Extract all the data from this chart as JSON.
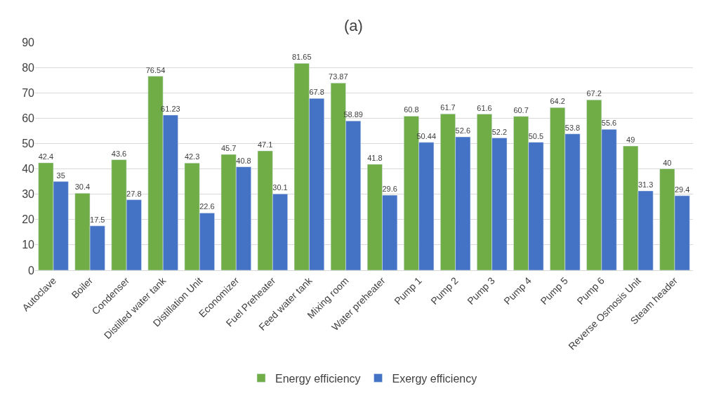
{
  "chart_data": {
    "type": "bar",
    "title": "(a)",
    "categories": [
      "Autoclave",
      "Boiler",
      "Condenser",
      "Distilled water tank",
      "Distillation Unit",
      "Economizer",
      "Fuel Preheater",
      "Feed water tank",
      "Mixing room",
      "Water preheater",
      "Pump 1",
      "Pump 2",
      "Pump 3",
      "Pump 4",
      "Pump 5",
      "Pump 6",
      "Reverse Osmosis Unit",
      "Steam header"
    ],
    "series": [
      {
        "name": "Energy efficiency",
        "color": "#70ad47",
        "values": [
          42.4,
          30.4,
          43.6,
          76.54,
          42.3,
          45.7,
          47.1,
          81.65,
          73.87,
          41.8,
          60.8,
          61.7,
          61.6,
          60.7,
          64.2,
          67.2,
          49,
          40
        ]
      },
      {
        "name": "Exergy efficiency",
        "color": "#4472c4",
        "values": [
          35,
          17.5,
          27.8,
          61.23,
          22.6,
          40.8,
          30.1,
          67.8,
          58.89,
          29.6,
          50.44,
          52.6,
          52.2,
          50.5,
          53.8,
          55.6,
          31.3,
          29.4
        ]
      }
    ],
    "ylim": [
      0,
      90
    ],
    "yticks": [
      0,
      10,
      20,
      30,
      40,
      50,
      60,
      70,
      80,
      90
    ],
    "grid": "y",
    "legend": "bottom",
    "data_labels": true
  }
}
